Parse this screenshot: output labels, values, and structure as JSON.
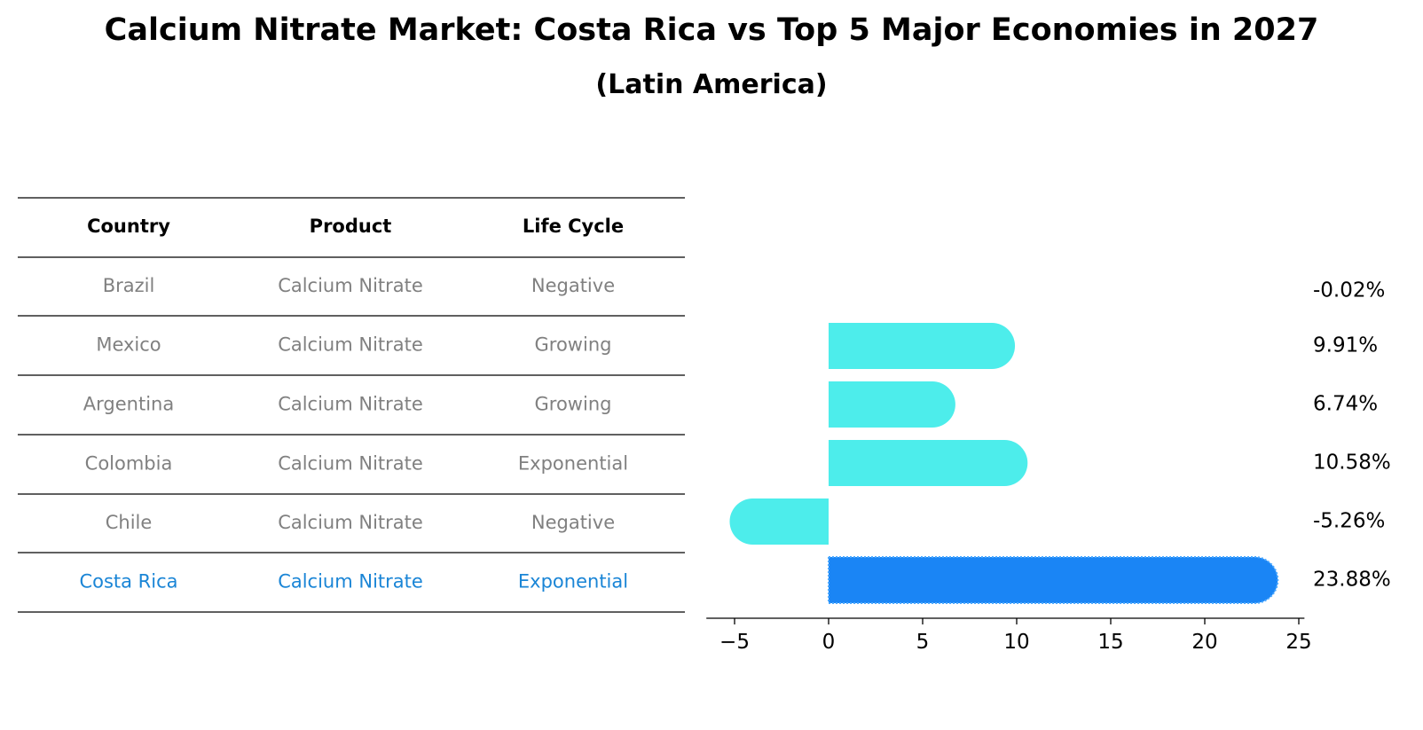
{
  "title": "Calcium Nitrate Market: Costa Rica vs Top 5 Major Economies in 2027",
  "subtitle": "(Latin America)",
  "colors": {
    "bar": "#4dedeb",
    "highlight": "#1a85f5",
    "highlight_text": "#1a85d6",
    "muted_text": "#808080"
  },
  "table": {
    "headers": [
      "Country",
      "Product",
      "Life Cycle"
    ],
    "rows": [
      [
        "Brazil",
        "Calcium Nitrate",
        "Negative"
      ],
      [
        "Mexico",
        "Calcium Nitrate",
        "Growing"
      ],
      [
        "Argentina",
        "Calcium Nitrate",
        "Growing"
      ],
      [
        "Colombia",
        "Calcium Nitrate",
        "Exponential"
      ],
      [
        "Chile",
        "Calcium Nitrate",
        "Negative"
      ],
      [
        "Costa Rica",
        "Calcium Nitrate",
        "Exponential"
      ]
    ],
    "highlight_row": 5
  },
  "chart_data": {
    "type": "bar",
    "orientation": "horizontal",
    "categories": [
      "Brazil",
      "Mexico",
      "Argentina",
      "Colombia",
      "Chile",
      "Costa Rica"
    ],
    "values": [
      -0.02,
      9.91,
      6.74,
      10.58,
      -5.26,
      23.88
    ],
    "labels": [
      "-0.02%",
      "9.91%",
      "6.74%",
      "10.58%",
      "-5.26%",
      "23.88%"
    ],
    "highlight": "Costa Rica",
    "xlim": [
      -6.5,
      25.3
    ],
    "xticks": [
      -5,
      0,
      5,
      10,
      15,
      20,
      25
    ],
    "xtick_labels": [
      "−5",
      "0",
      "5",
      "10",
      "15",
      "20",
      "25"
    ],
    "title": "Calcium Nitrate Market: Costa Rica vs Top 5 Major Economies in 2027",
    "xlabel": "",
    "ylabel": "",
    "grid": false
  }
}
